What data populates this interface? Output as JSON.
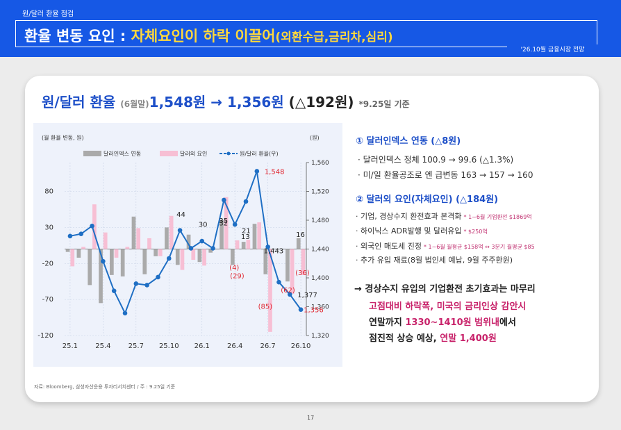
{
  "header": {
    "eyebrow": "원/달러 환율 점검",
    "title_main": "환율 변동 요인 : ",
    "title_highlight": "자체요인이 하락 이끌어",
    "title_sub": "(외환수급,금리차,심리)",
    "tag": "'26.10월 금융시장 전망"
  },
  "headline": {
    "label": "원/달러 환율",
    "period": "(6월말)",
    "from_value": "1,548원",
    "arrow": "→",
    "to_value": "1,356원",
    "change": "(△192원)",
    "note": "*9.25일 기준"
  },
  "sections": [
    {
      "title": "① 달러인덱스 연동 (△8원)",
      "bullets": [
        "· 달러인덱스 정체 100.9 → 99.6 (△1.3%)",
        "· 미/일 환율공조로 엔 급변동 163 → 157 → 160"
      ]
    },
    {
      "title": "② 달러외 요인(자체요인) (△184원)",
      "bullets": [
        {
          "text": "· 기업, 경상수지 환전효과 본격화",
          "note": "* 1~6월 기업환전 $1869억"
        },
        {
          "text": "· 하이닉스 ADR발행 및 달러유입",
          "note": "* $250억"
        },
        {
          "text": "· 외국인 매도세 진정",
          "note": "* 1~6월 월평균 $158억 ↔ 3분기 월평균 $85"
        },
        {
          "text": "· 추가 유입 재료(8월 법인세 예납, 9월 주주환원)",
          "note": ""
        }
      ]
    }
  ],
  "conclusion": {
    "line1": "→ 경상수지 유입의 기업환전 초기효과는 마무리",
    "line2": "고점대비 하락폭, 미국의 금리인상 감안시",
    "line3_a": "연말까지 ",
    "line3_b": "1330~1410원 범위내",
    "line3_c": "에서",
    "line4_a": "점진적 상승 예상, ",
    "line4_b": "연말 1,400원"
  },
  "footer": {
    "source": "자료: Bloomberg, 삼성자산운용 투자리서치센터 / 주 : 9.25일 기준",
    "page": "17"
  },
  "colors": {
    "header_blue": "#1658e5",
    "highlight_yellow": "#ffd83d",
    "line_blue": "#1f6fc4",
    "bar_gray": "#aaaaaa",
    "bar_pink": "#f7bfd4",
    "label_red": "#e0252f",
    "emphasis_pink": "#c8226a"
  },
  "chart_data": {
    "type": "bar+line",
    "left_axis_title": "(월 환율 변동, 원)",
    "right_axis_title": "(원)",
    "legend": [
      "달러인덱스 연동",
      "달러외 요인",
      "원/달러 환율(우)"
    ],
    "legend_position": "top",
    "ylim_left": [
      -120,
      120
    ],
    "left_ticks": [
      80,
      30,
      -20,
      -70,
      -120
    ],
    "ylim_right": [
      1320,
      1560
    ],
    "right_ticks": [
      1560,
      1520,
      1480,
      1440,
      1400,
      1360,
      1320
    ],
    "x_tick_labels": [
      "25.1",
      "25.4",
      "25.7",
      "25.10",
      "26.1",
      "26.4",
      "26.7",
      "26.10"
    ],
    "x_tick_every": 3,
    "x_points": 22,
    "series": [
      {
        "name": "달러인덱스 연동",
        "type": "bar",
        "values": [
          -4,
          -12,
          -50,
          -75,
          -36,
          -38,
          45,
          -35,
          -10,
          30,
          -22,
          20,
          -18,
          -5,
          40,
          -22,
          10,
          35,
          -35,
          0,
          -45,
          15
        ]
      },
      {
        "name": "달러외 요인",
        "type": "bar",
        "values": [
          -24,
          3,
          62,
          23,
          -12,
          3,
          29,
          15,
          -10,
          46,
          -29,
          -15,
          -23,
          0,
          72,
          12,
          13,
          37,
          -115,
          0,
          -62,
          -36
        ]
      },
      {
        "name": "원/달러 환율(우)",
        "type": "line",
        "values": [
          1458,
          1461,
          1472,
          1423,
          1382,
          1351,
          1392,
          1390,
          1401,
          1427,
          1466,
          1441,
          1451,
          1441,
          1508,
          1474,
          1506,
          1548,
          1443,
          1394,
          1377,
          1356
        ]
      }
    ],
    "annotations": [
      {
        "text": "1,548",
        "color": "red"
      },
      {
        "text": "1,443",
        "color": "dark"
      },
      {
        "text": "1,377",
        "color": "dark"
      },
      {
        "text": "1,356",
        "color": "red"
      },
      {
        "text": "44",
        "color": "dark"
      },
      {
        "text": "30",
        "color": "dark"
      },
      {
        "text": "32",
        "color": "dark"
      },
      {
        "text": "35",
        "color": "dark"
      },
      {
        "text": "21",
        "color": "dark"
      },
      {
        "text": "13",
        "color": "dark"
      },
      {
        "text": "16",
        "color": "dark"
      },
      {
        "text": "(29)",
        "color": "red"
      },
      {
        "text": "(4)",
        "color": "red"
      },
      {
        "text": "(85)",
        "color": "red"
      },
      {
        "text": "(62)",
        "color": "red"
      },
      {
        "text": "(36)",
        "color": "red"
      }
    ]
  }
}
